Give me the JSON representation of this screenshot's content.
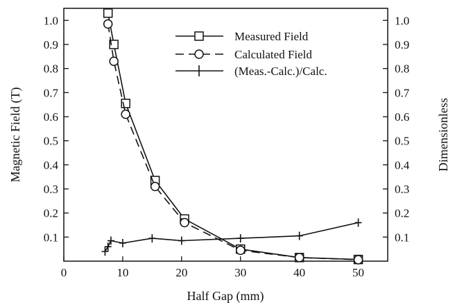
{
  "chart_data": {
    "type": "line",
    "xlabel": "Half Gap (mm)",
    "ylabel_left": "Magnetic Field (T)",
    "ylabel_right": "Dimensionless",
    "xlim": [
      0,
      55
    ],
    "ylim": [
      0,
      1.05
    ],
    "xticks": [
      0,
      10,
      20,
      30,
      40,
      50
    ],
    "yticks_left": [
      0.1,
      0.2,
      0.3,
      0.4,
      0.5,
      0.6,
      0.7,
      0.8,
      0.9,
      1.0
    ],
    "yticks_right": [
      0.1,
      0.2,
      0.3,
      0.4,
      0.5,
      0.6,
      0.7,
      0.8,
      0.9,
      1.0
    ],
    "grid": false,
    "legend_position": "top-right",
    "series": [
      {
        "name": "Measured Field",
        "marker": "square",
        "line": "solid",
        "x": [
          7.5,
          8.5,
          10.5,
          15.5,
          20.5,
          30,
          40,
          50
        ],
        "y": [
          1.03,
          0.9,
          0.655,
          0.335,
          0.175,
          0.05,
          0.015,
          0.007
        ]
      },
      {
        "name": "Calculated Field",
        "marker": "circle",
        "line": "dashed",
        "x": [
          7.5,
          8.5,
          10.5,
          15.5,
          20.5,
          30,
          40,
          50
        ],
        "y": [
          0.985,
          0.83,
          0.61,
          0.31,
          0.16,
          0.045,
          0.015,
          0.006
        ]
      },
      {
        "name": "(Meas.-Calc.)/Calc.",
        "marker": "plus",
        "line": "solid",
        "x": [
          7,
          7.5,
          8,
          10,
          15,
          20,
          30,
          40,
          50
        ],
        "y": [
          0.04,
          0.06,
          0.085,
          0.075,
          0.095,
          0.085,
          0.095,
          0.105,
          0.16
        ]
      }
    ]
  }
}
